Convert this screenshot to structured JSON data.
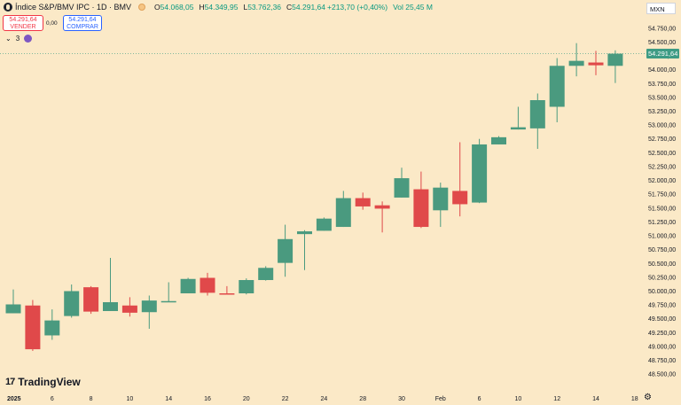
{
  "header": {
    "title": "Índice S&P/BMV IPC · 1D · BMV",
    "open_key": "O",
    "open": "54.068,05",
    "high_key": "H",
    "high": "54.349,95",
    "low_key": "L",
    "low": "53.762,36",
    "close_key": "C",
    "close": "54.291,64",
    "change": "+213,70 (+0,40%)",
    "volume": "Vol 25,45 M"
  },
  "trade": {
    "sell_price": "54.291,64",
    "sell_label": "VENDER",
    "spread": "0,00",
    "buy_price": "54.291,64",
    "buy_label": "COMPRAR"
  },
  "indicators": {
    "count": "3",
    "badge": ""
  },
  "currency": "MXN",
  "brand": "TradingView",
  "colors": {
    "up": "#4a9a7f",
    "down": "#e0494a",
    "background": "#fbe9c7",
    "last_price": "#3d9b84"
  },
  "chart_data": {
    "type": "candlestick",
    "ylim": [
      48375,
      54875
    ],
    "last_price": "54.291,64",
    "y_ticks": [
      "54.750,00",
      "54.500,00",
      "54.250,00",
      "54.000,00",
      "53.750,00",
      "53.500,00",
      "53.250,00",
      "53.000,00",
      "52.750,00",
      "52.500,00",
      "52.250,00",
      "52.000,00",
      "51.750,00",
      "51.500,00",
      "51.250,00",
      "51.000,00",
      "50.750,00",
      "50.500,00",
      "50.250,00",
      "50.000,00",
      "49.750,00",
      "49.500,00",
      "49.250,00",
      "49.000,00",
      "48.750,00",
      "48.500,00"
    ],
    "y_tick_values": [
      54750,
      54500,
      54250,
      54000,
      53750,
      53500,
      53250,
      53000,
      52750,
      52500,
      52250,
      52000,
      51750,
      51500,
      51250,
      51000,
      50750,
      50500,
      50250,
      50000,
      49750,
      49500,
      49250,
      49000,
      48750,
      48500
    ],
    "x_ticks": [
      "2025",
      "6",
      "8",
      "10",
      "14",
      "16",
      "20",
      "22",
      "24",
      "28",
      "30",
      "Feb",
      "6",
      "10",
      "12",
      "14",
      "18"
    ],
    "x_tick_index": [
      0,
      2,
      4,
      6,
      8,
      10,
      12,
      14,
      16,
      18,
      20,
      22,
      24,
      26,
      28,
      30,
      32
    ],
    "candles": [
      {
        "i": 0,
        "o": 49600,
        "h": 50030,
        "l": 49600,
        "c": 49760
      },
      {
        "i": 1,
        "o": 49740,
        "h": 49840,
        "l": 48920,
        "c": 48950
      },
      {
        "i": 2,
        "o": 49200,
        "h": 49670,
        "l": 49120,
        "c": 49470
      },
      {
        "i": 3,
        "o": 49550,
        "h": 50120,
        "l": 49520,
        "c": 50000
      },
      {
        "i": 4,
        "o": 50070,
        "h": 50090,
        "l": 49590,
        "c": 49630
      },
      {
        "i": 5,
        "o": 49640,
        "h": 50600,
        "l": 49640,
        "c": 49800
      },
      {
        "i": 6,
        "o": 49740,
        "h": 49890,
        "l": 49540,
        "c": 49610
      },
      {
        "i": 7,
        "o": 49620,
        "h": 49920,
        "l": 49320,
        "c": 49830
      },
      {
        "i": 8,
        "o": 49810,
        "h": 50160,
        "l": 49810,
        "c": 49820
      },
      {
        "i": 9,
        "o": 49960,
        "h": 50240,
        "l": 49960,
        "c": 50220
      },
      {
        "i": 10,
        "o": 50240,
        "h": 50330,
        "l": 49920,
        "c": 49970
      },
      {
        "i": 11,
        "o": 49960,
        "h": 50090,
        "l": 49940,
        "c": 49940
      },
      {
        "i": 12,
        "o": 49960,
        "h": 50230,
        "l": 49940,
        "c": 50200
      },
      {
        "i": 13,
        "o": 50200,
        "h": 50450,
        "l": 50190,
        "c": 50420
      },
      {
        "i": 14,
        "o": 50510,
        "h": 51200,
        "l": 50260,
        "c": 50940
      },
      {
        "i": 15,
        "o": 51030,
        "h": 51100,
        "l": 50380,
        "c": 51080
      },
      {
        "i": 16,
        "o": 51090,
        "h": 51330,
        "l": 51090,
        "c": 51310
      },
      {
        "i": 17,
        "o": 51160,
        "h": 51810,
        "l": 51160,
        "c": 51680
      },
      {
        "i": 18,
        "o": 51680,
        "h": 51780,
        "l": 51470,
        "c": 51530
      },
      {
        "i": 19,
        "o": 51550,
        "h": 51620,
        "l": 51060,
        "c": 51490
      },
      {
        "i": 20,
        "o": 51690,
        "h": 52230,
        "l": 51690,
        "c": 52040
      },
      {
        "i": 21,
        "o": 51840,
        "h": 52160,
        "l": 51140,
        "c": 51160
      },
      {
        "i": 22,
        "o": 51460,
        "h": 51960,
        "l": 51160,
        "c": 51870
      },
      {
        "i": 23,
        "o": 51810,
        "h": 52690,
        "l": 51350,
        "c": 51570
      },
      {
        "i": 24,
        "o": 51600,
        "h": 52750,
        "l": 51590,
        "c": 52650
      },
      {
        "i": 25,
        "o": 52650,
        "h": 52800,
        "l": 52650,
        "c": 52780
      },
      {
        "i": 26,
        "o": 52920,
        "h": 53330,
        "l": 52920,
        "c": 52960
      },
      {
        "i": 27,
        "o": 52940,
        "h": 53570,
        "l": 52570,
        "c": 53450
      },
      {
        "i": 28,
        "o": 53330,
        "h": 54210,
        "l": 53050,
        "c": 54070
      },
      {
        "i": 29,
        "o": 54070,
        "h": 54480,
        "l": 53880,
        "c": 54160
      },
      {
        "i": 30,
        "o": 54130,
        "h": 54340,
        "l": 53900,
        "c": 54080
      },
      {
        "i": 31,
        "o": 54070,
        "h": 54350,
        "l": 53760,
        "c": 54290
      }
    ]
  }
}
